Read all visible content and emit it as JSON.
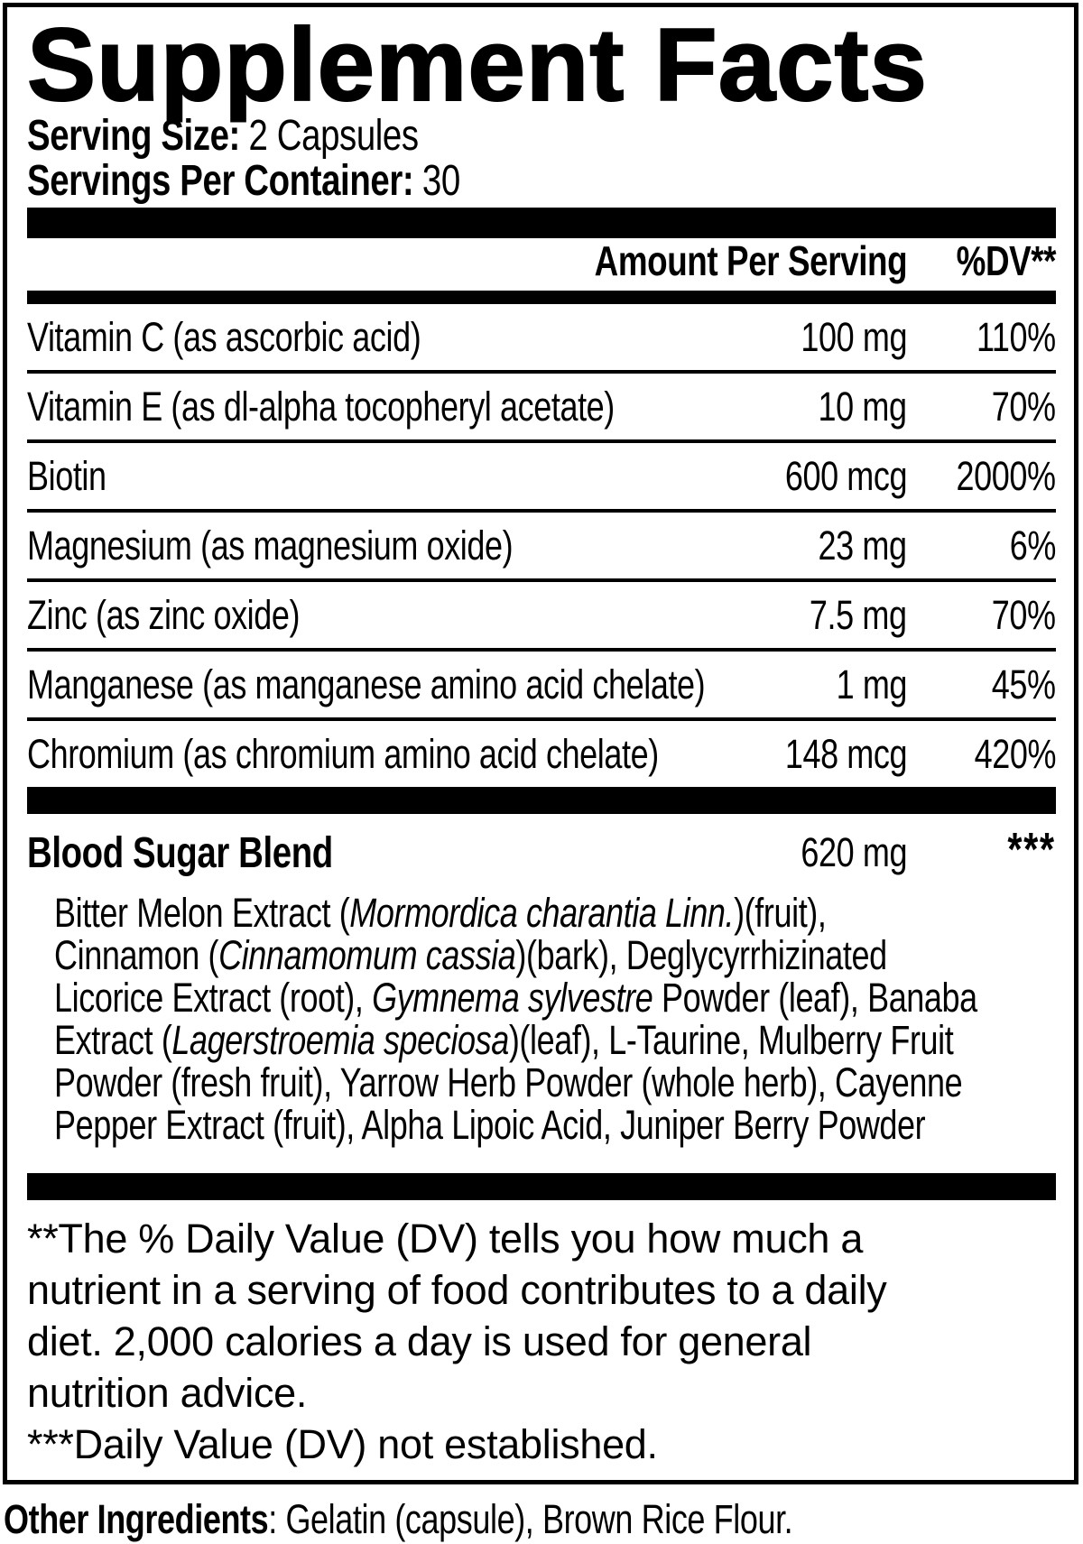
{
  "label": {
    "title": "Supplement Facts",
    "serving_size_label": "Serving Size:",
    "serving_size_value": "2 Capsules",
    "servings_per_container_label": "Servings Per Container:",
    "servings_per_container_value": "30",
    "header": {
      "amount": "Amount Per Serving",
      "dv": "%DV**"
    },
    "nutrients": [
      {
        "name": "Vitamin C (as ascorbic acid)",
        "amount": "100 mg",
        "dv": "110%"
      },
      {
        "name": "Vitamin E (as dl-alpha tocopheryl acetate)",
        "amount": "10 mg",
        "dv": "70%"
      },
      {
        "name": "Biotin",
        "amount": "600 mcg",
        "dv": "2000%"
      },
      {
        "name": "Magnesium (as magnesium oxide)",
        "amount": "23 mg",
        "dv": "6%"
      },
      {
        "name": "Zinc (as zinc oxide)",
        "amount": "7.5 mg",
        "dv": "70%"
      },
      {
        "name": "Manganese (as manganese amino acid chelate)",
        "amount": "1 mg",
        "dv": "45%"
      },
      {
        "name": "Chromium (as chromium amino acid chelate)",
        "amount": "148 mcg",
        "dv": "420%"
      }
    ],
    "blend": {
      "name": "Blood Sugar Blend",
      "amount": "620 mg",
      "dv": "***",
      "description_lines": [
        [
          {
            "t": "Bitter Melon Extract ("
          },
          {
            "t": "Mormordica charantia Linn.",
            "i": true
          },
          {
            "t": ")(fruit),"
          }
        ],
        [
          {
            "t": "Cinnamon ("
          },
          {
            "t": "Cinnamomum cassia",
            "i": true
          },
          {
            "t": ")(bark), Deglycyrrhizinated"
          }
        ],
        [
          {
            "t": "Licorice Extract (root), "
          },
          {
            "t": "Gymnema sylvestre",
            "i": true
          },
          {
            "t": " Powder (leaf), Banaba"
          }
        ],
        [
          {
            "t": "Extract ("
          },
          {
            "t": "Lagerstroemia speciosa",
            "i": true
          },
          {
            "t": ")(leaf), L-Taurine, Mulberry Fruit"
          }
        ],
        [
          {
            "t": "Powder (fresh fruit), Yarrow Herb Powder (whole herb), Cayenne"
          }
        ],
        [
          {
            "t": "Pepper Extract (fruit), Alpha Lipoic Acid, Juniper Berry Powder"
          }
        ]
      ]
    },
    "footnotes": {
      "dv_note_lines": [
        "**The % Daily Value (DV) tells you how much a",
        "nutrient in a serving of food contributes to a daily",
        "diet. 2,000 calories a day is used for general",
        "nutrition advice."
      ],
      "not_established": "***Daily Value (DV) not established."
    },
    "other_ingredients_label": "Other Ingredients",
    "other_ingredients_value": ": Gelatin (capsule), Brown Rice Flour.",
    "colors": {
      "ink": "#000000",
      "paper": "#ffffff"
    }
  }
}
